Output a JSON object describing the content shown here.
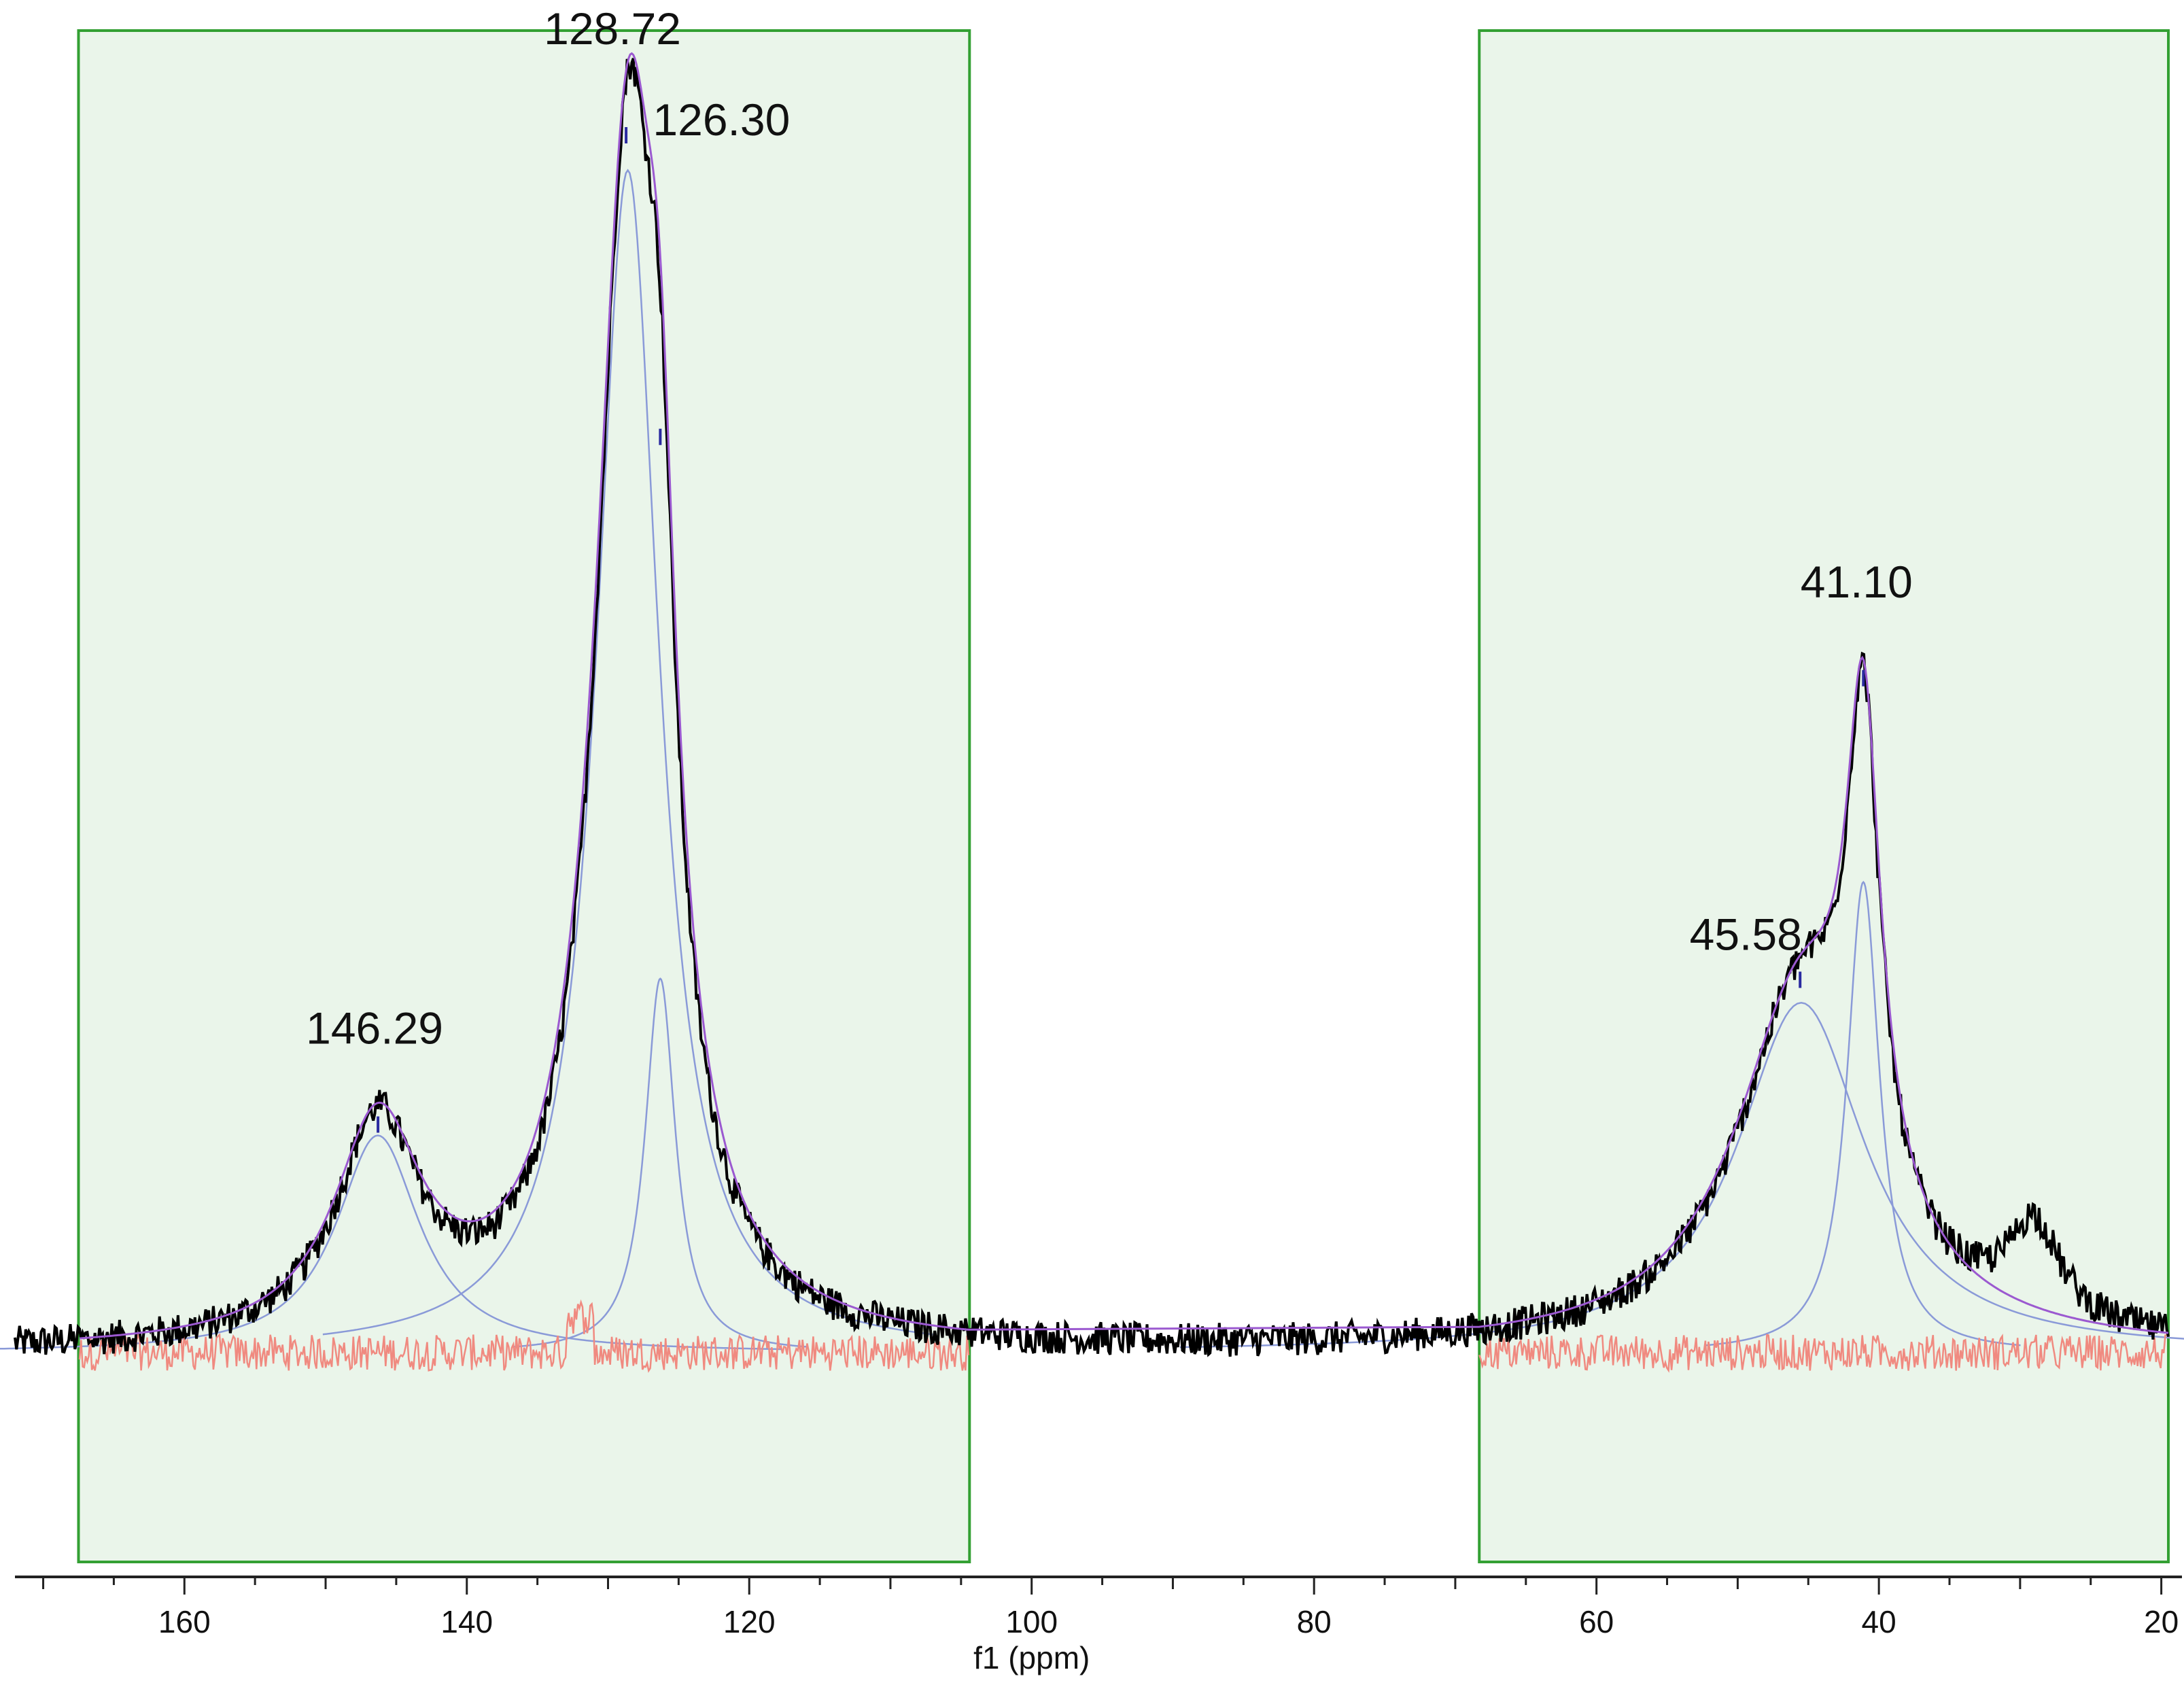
{
  "chart_data": {
    "type": "line",
    "xlabel": "f1 (ppm)",
    "ylabel": "",
    "xlim": [
      172,
      19.5
    ],
    "x_reversed": true,
    "x_ticks": [
      160,
      140,
      120,
      100,
      80,
      60,
      40,
      20
    ],
    "x_tick_labels": [
      "160",
      "140",
      "120",
      "100",
      "80",
      "60",
      "40",
      "20"
    ],
    "grid": false,
    "integration_regions": [
      {
        "from": 167.5,
        "to": 104.4
      },
      {
        "from": 68.3,
        "to": 19.5
      }
    ],
    "peak_labels": [
      {
        "text": "128.72",
        "ppm": 128.72,
        "height": 1.0
      },
      {
        "text": "126.30",
        "ppm": 126.3,
        "height": 0.75
      },
      {
        "text": "146.29",
        "ppm": 146.29,
        "height": 0.18
      },
      {
        "text": "41.10",
        "ppm": 41.1,
        "height": 0.55
      },
      {
        "text": "45.58",
        "ppm": 45.58,
        "height": 0.3
      }
    ],
    "peaks": [
      {
        "center": 146.3,
        "height": 0.18,
        "width": 3.6
      },
      {
        "center": 128.6,
        "height": 0.98,
        "width": 2.7
      },
      {
        "center": 126.3,
        "height": 0.31,
        "width": 1.3
      },
      {
        "center": 45.5,
        "height": 0.29,
        "width": 5.5
      },
      {
        "center": 41.1,
        "height": 0.39,
        "width": 1.4
      },
      {
        "center": 29.0,
        "height": 0.08,
        "width": 2.2
      }
    ],
    "series": [
      {
        "name": "",
        "role": "spectrum",
        "color": "#000000"
      },
      {
        "name": "",
        "role": "fit-sum",
        "color": "#9b59d0"
      },
      {
        "name": "",
        "role": "fit-components",
        "color": "#8a9ad8"
      },
      {
        "name": "",
        "role": "residual",
        "color": "#f08a80"
      }
    ],
    "colors": {
      "region_fill": "#eaf5ea",
      "region_border": "#33a033",
      "peak_marker": "#2a2aa0",
      "axis": "#222222"
    }
  }
}
